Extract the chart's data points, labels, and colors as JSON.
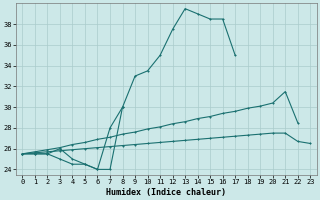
{
  "xlabel": "Humidex (Indice chaleur)",
  "bg_color": "#cce8e8",
  "grid_color": "#aacccc",
  "line_color": "#1a7070",
  "ylim": [
    23.5,
    40.0
  ],
  "xlim": [
    -0.5,
    23.5
  ],
  "yticks": [
    24,
    26,
    28,
    30,
    32,
    34,
    36,
    38
  ],
  "xticks": [
    0,
    1,
    2,
    3,
    4,
    5,
    6,
    7,
    8,
    9,
    10,
    11,
    12,
    13,
    14,
    15,
    16,
    17,
    18,
    19,
    20,
    21,
    22,
    23
  ],
  "line1_x": [
    0,
    1,
    2,
    3,
    4,
    5,
    6,
    7,
    8,
    9,
    10,
    11,
    12,
    13,
    14,
    15,
    16,
    17
  ],
  "line1_y": [
    25.5,
    25.5,
    25.5,
    26.0,
    25.0,
    24.5,
    24.0,
    24.0,
    30.0,
    33.0,
    33.5,
    35.0,
    37.5,
    39.5,
    39.0,
    38.5,
    38.5,
    35.0
  ],
  "line2_x": [
    0,
    1,
    2,
    3,
    4,
    5,
    6,
    7,
    8
  ],
  "line2_y": [
    25.5,
    25.5,
    25.5,
    25.0,
    24.5,
    24.5,
    24.0,
    28.0,
    30.0
  ],
  "line3_x": [
    0,
    1,
    2,
    3,
    4,
    5,
    6,
    7,
    8,
    9,
    10,
    11,
    12,
    13,
    14,
    15,
    16,
    17,
    18,
    19,
    20,
    21,
    22
  ],
  "line3_y": [
    25.5,
    25.7,
    25.9,
    26.1,
    26.4,
    26.6,
    26.9,
    27.1,
    27.4,
    27.6,
    27.9,
    28.1,
    28.4,
    28.6,
    28.9,
    29.1,
    29.4,
    29.6,
    29.9,
    30.1,
    30.4,
    31.5,
    28.5
  ],
  "line4_x": [
    0,
    1,
    2,
    3,
    4,
    5,
    6,
    7,
    8,
    9,
    10,
    11,
    12,
    13,
    14,
    15,
    16,
    17,
    18,
    19,
    20,
    21,
    22,
    23
  ],
  "line4_y": [
    25.5,
    25.6,
    25.7,
    25.8,
    25.9,
    26.0,
    26.1,
    26.2,
    26.3,
    26.4,
    26.5,
    26.6,
    26.7,
    26.8,
    26.9,
    27.0,
    27.1,
    27.2,
    27.3,
    27.4,
    27.5,
    27.5,
    26.7,
    26.5
  ]
}
